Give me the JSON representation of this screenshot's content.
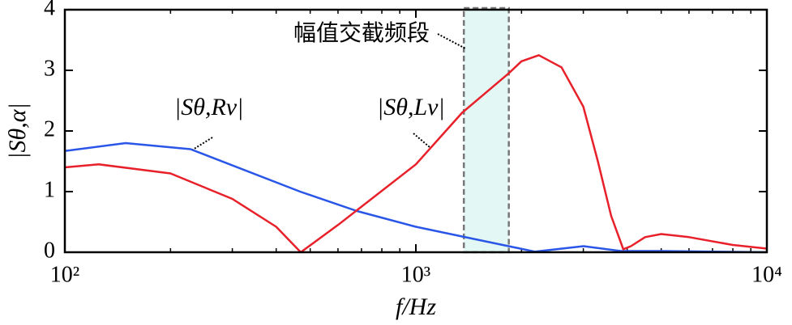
{
  "chart_data": {
    "type": "line",
    "xlog": true,
    "xlabel": "f/Hz",
    "ylabel": "|Sθ,α|",
    "xlim": [
      100,
      10000
    ],
    "ylim": [
      0,
      4
    ],
    "xticks": [
      {
        "value": 100,
        "label": "10²"
      },
      {
        "value": 1000,
        "label": "10³"
      },
      {
        "value": 10000,
        "label": "10⁴"
      }
    ],
    "xminorticks": [
      200,
      300,
      400,
      500,
      600,
      700,
      800,
      900,
      2000,
      3000,
      4000,
      5000,
      6000,
      7000,
      8000,
      9000
    ],
    "yticks": [
      0,
      1,
      2,
      3,
      4
    ],
    "band": {
      "x": [
        1370,
        1840
      ],
      "label": "幅值交截频段"
    },
    "series": [
      {
        "name": "|Sθ,Rv|",
        "color": "#2a56e8",
        "x": [
          100,
          149,
          228,
          468,
          679,
          1000,
          1354,
          1837,
          2186,
          3003,
          3844,
          5000,
          10000
        ],
        "values": [
          1.67,
          1.8,
          1.7,
          1.0,
          0.68,
          0.42,
          0.26,
          0.1,
          0.01,
          0.1,
          0.02,
          0.02,
          0.0
        ]
      },
      {
        "name": "|Sθ,Lv|",
        "color": "#e8202a",
        "x": [
          100,
          125,
          200,
          300,
          400,
          470,
          600,
          1000,
          1354,
          1837,
          2000,
          2240,
          2600,
          3000,
          3300,
          3600,
          3900,
          4100,
          4500,
          5000,
          6000,
          8000,
          10000
        ],
        "values": [
          1.4,
          1.45,
          1.3,
          0.88,
          0.42,
          0.0,
          0.45,
          1.45,
          2.3,
          2.95,
          3.15,
          3.25,
          3.05,
          2.4,
          1.5,
          0.6,
          0.05,
          0.1,
          0.25,
          0.3,
          0.25,
          0.12,
          0.06
        ]
      }
    ]
  }
}
